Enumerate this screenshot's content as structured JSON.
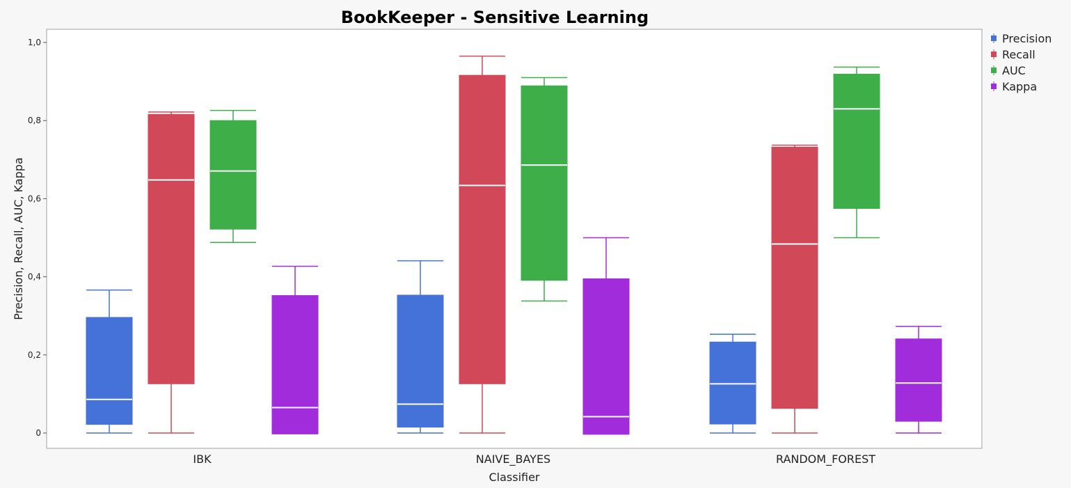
{
  "chart_data": {
    "type": "box",
    "title": "BookKeeper - Sensitive Learning",
    "xlabel": "Classifier",
    "ylabel": "Precision, Recall, AUC, Kappa",
    "ylim": [
      0,
      1.0
    ],
    "yticks": [
      0,
      0.2,
      0.4,
      0.6,
      0.8,
      1.0
    ],
    "ytick_labels": [
      "0",
      "0,2",
      "0,4",
      "0,6",
      "0,8",
      "1,0"
    ],
    "categories": [
      "IBK",
      "NAIVE_BAYES",
      "RANDOM_FOREST"
    ],
    "legend_position": "right",
    "grid": false,
    "series": [
      {
        "name": "Precision",
        "color": "#4472d9",
        "boxes": [
          {
            "min": 0.0,
            "q1": 0.022,
            "median": 0.086,
            "q3": 0.296,
            "max": 0.366
          },
          {
            "min": 0.0,
            "q1": 0.015,
            "median": 0.074,
            "q3": 0.353,
            "max": 0.441
          },
          {
            "min": 0.0,
            "q1": 0.023,
            "median": 0.126,
            "q3": 0.233,
            "max": 0.253
          }
        ]
      },
      {
        "name": "Recall",
        "color": "#d14959",
        "boxes": [
          {
            "min": 0.0,
            "q1": 0.126,
            "median": 0.648,
            "q3": 0.816,
            "max": 0.822
          },
          {
            "min": 0.0,
            "q1": 0.126,
            "median": 0.634,
            "q3": 0.916,
            "max": 0.965
          },
          {
            "min": 0.0,
            "q1": 0.063,
            "median": 0.484,
            "q3": 0.732,
            "max": 0.737
          }
        ]
      },
      {
        "name": "AUC",
        "color": "#3dae48",
        "boxes": [
          {
            "min": 0.488,
            "q1": 0.522,
            "median": 0.671,
            "q3": 0.8,
            "max": 0.826
          },
          {
            "min": 0.338,
            "q1": 0.391,
            "median": 0.686,
            "q3": 0.889,
            "max": 0.91
          },
          {
            "min": 0.5,
            "q1": 0.575,
            "median": 0.83,
            "q3": 0.919,
            "max": 0.937
          }
        ]
      },
      {
        "name": "Kappa",
        "color": "#a02cdb",
        "boxes": [
          {
            "min": -0.002,
            "q1": -0.002,
            "median": 0.065,
            "q3": 0.352,
            "max": 0.427
          },
          {
            "min": -0.003,
            "q1": -0.003,
            "median": 0.042,
            "q3": 0.395,
            "max": 0.5
          },
          {
            "min": 0.0,
            "q1": 0.03,
            "median": 0.128,
            "q3": 0.241,
            "max": 0.273
          }
        ]
      }
    ]
  }
}
